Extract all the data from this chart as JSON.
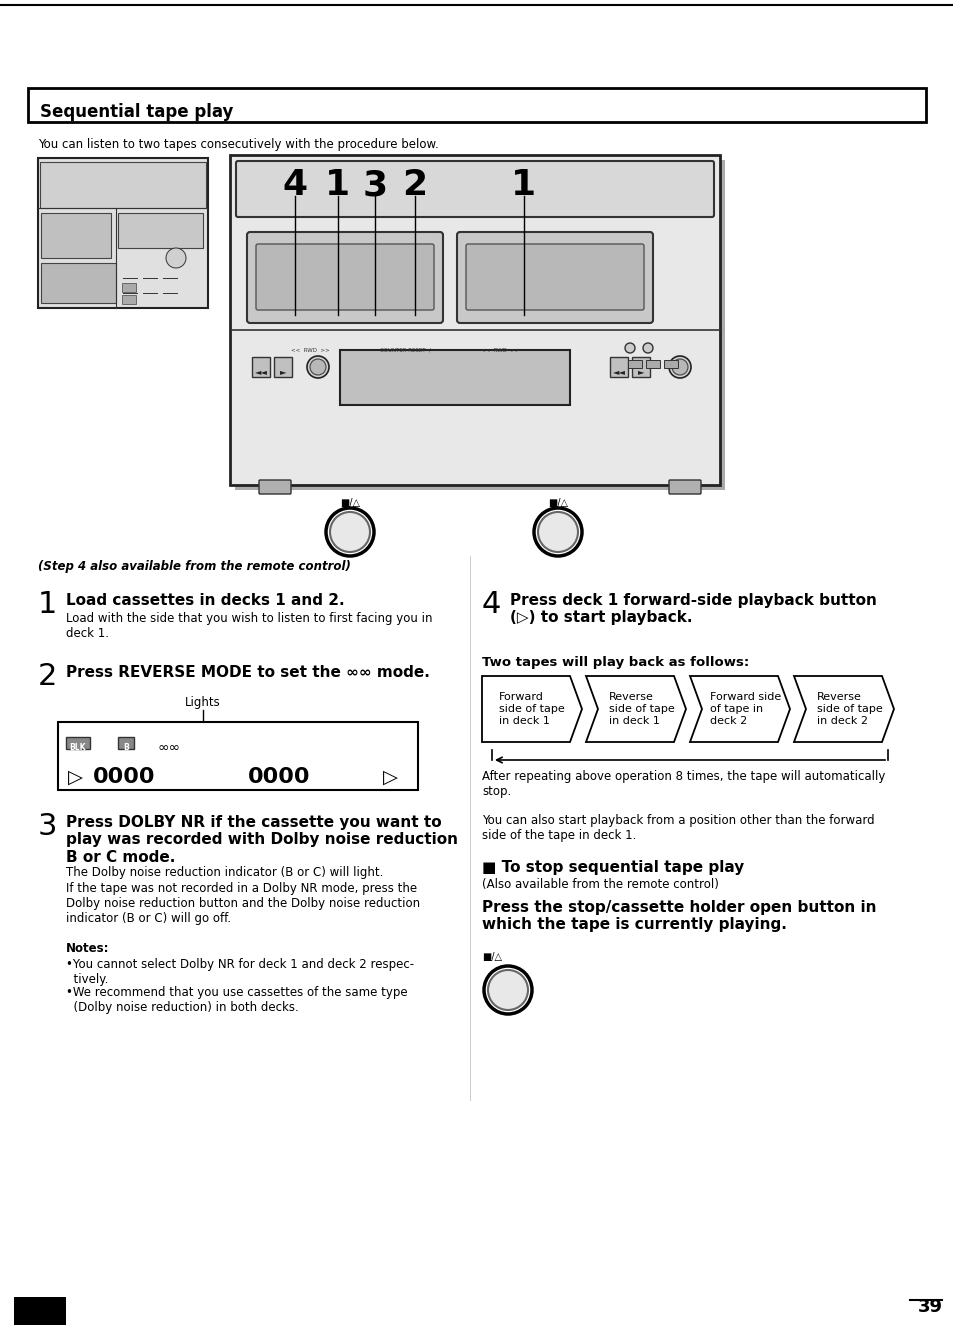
{
  "title": "Sequential tape play",
  "bg_color": "#ffffff",
  "page_number": "39",
  "intro_text": "You can listen to two tapes consecutively with the procedure below.",
  "step1_num": "1",
  "step1_bold": "Load cassettes in decks 1 and 2.",
  "step1_detail": "Load with the side that you wish to listen to first facing you in\ndeck 1.",
  "step2_num": "2",
  "step2_bold": "Press REVERSE MODE to set the ∞∞ mode.",
  "lights_label": "Lights",
  "step3_num": "3",
  "step3_bold": "Press DOLBY NR if the cassette you want to\nplay was recorded with Dolby noise reduction\nB or C mode.",
  "step3_detail1": "The Dolby noise reduction indicator (B or C) will light.",
  "step3_detail2": "If the tape was not recorded in a Dolby NR mode, press the\nDolby noise reduction button and the Dolby noise reduction\nindicator (B or C) will go off.",
  "notes_bold": "Notes:",
  "note1": "•You cannot select Dolby NR for deck 1 and deck 2 respec-\n  tively.",
  "note2": "•We recommend that you use cassettes of the same type\n  (Dolby noise reduction) in both decks.",
  "step4_num": "4",
  "step4_bold": "Press deck 1 forward-side playback button\n(▷) to start playback.",
  "step4_remote": "(Step 4 also available from the remote control)",
  "two_tapes_header": "Two tapes will play back as follows:",
  "flow_labels": [
    "Forward\nside of tape\nin deck 1",
    "Reverse\nside of tape\nin deck 1",
    "Forward side\nof tape in\ndeck 2",
    "Reverse\nside of tape\nin deck 2"
  ],
  "after_text": "After repeating above operation 8 times, the tape will automatically\nstop.",
  "also_text": "You can also start playback from a position other than the forward\nside of the tape in deck 1.",
  "stop_header": "■ To stop sequential tape play",
  "stop_remote": "(Also available from the remote control)",
  "stop_bold": "Press the stop/cassette holder open button in\nwhich the tape is currently playing."
}
